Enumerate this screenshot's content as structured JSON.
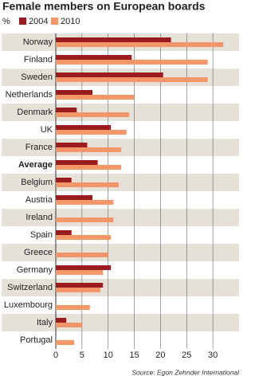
{
  "chart_data": {
    "type": "hbar",
    "title": "Female members on European boards",
    "unit_label": "%",
    "categories": [
      "Norway",
      "Finland",
      "Sweden",
      "Netherlands",
      "Denmark",
      "UK",
      "France",
      "Average",
      "Belgium",
      "Austria",
      "Ireland",
      "Spain",
      "Greece",
      "Germany",
      "Switzerland",
      "Luxembourg",
      "Italy",
      "Portugal"
    ],
    "series": [
      {
        "name": "2004",
        "color": "#9b1c1f",
        "values": [
          22,
          14.5,
          20.5,
          7,
          4,
          10.5,
          6,
          8,
          3,
          7,
          null,
          3,
          null,
          10.5,
          9,
          null,
          2,
          null
        ]
      },
      {
        "name": "2010",
        "color": "#f4956a",
        "values": [
          32,
          29,
          29,
          15,
          14,
          13.5,
          12.5,
          12.5,
          12,
          11,
          11,
          10.5,
          10,
          9,
          8.5,
          6.5,
          5,
          3.5
        ]
      }
    ],
    "xlim": [
      0,
      35
    ],
    "xticks": [
      0,
      5,
      10,
      15,
      20,
      25,
      30
    ],
    "grid": true,
    "source": "Source: Egon Zehnder International"
  }
}
